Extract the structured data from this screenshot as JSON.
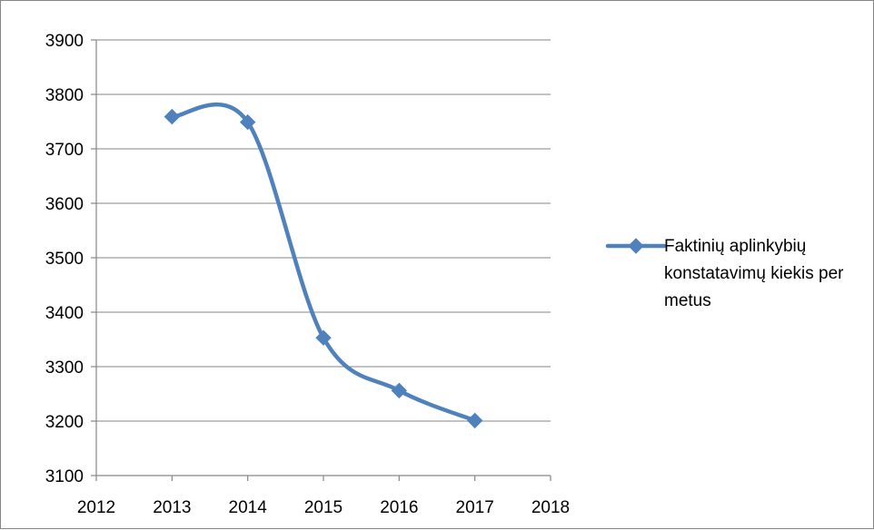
{
  "chart_data": {
    "type": "line",
    "smooth": true,
    "x": [
      2013,
      2014,
      2015,
      2016,
      2017
    ],
    "series": [
      {
        "name": "Faktinių aplinkybių konstatavimų kiekis per metus",
        "values": [
          3759,
          3749,
          3353,
          3256,
          3201
        ],
        "color": "#4f81bd",
        "marker": "diamond"
      }
    ],
    "xlim": [
      2012,
      2018
    ],
    "ylim": [
      3100,
      3900
    ],
    "xticks": [
      "2012",
      "2013",
      "2014",
      "2015",
      "2016",
      "2017",
      "2018"
    ],
    "yticks": [
      "3100",
      "3200",
      "3300",
      "3400",
      "3500",
      "3600",
      "3700",
      "3800",
      "3900"
    ],
    "grid": "horizontal",
    "legend": "right",
    "title": "",
    "xlabel": "",
    "ylabel": ""
  }
}
